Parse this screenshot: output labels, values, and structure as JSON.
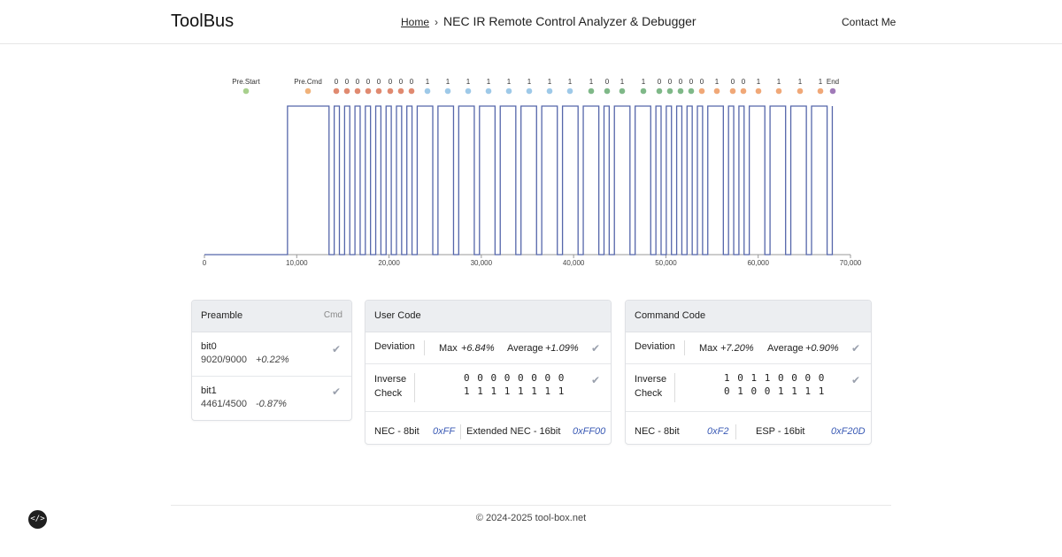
{
  "header": {
    "brand": "ToolBus",
    "breadcrumb_home": "Home",
    "breadcrumb_sep": "›",
    "breadcrumb_current": "NEC IR Remote Control Analyzer & Debugger",
    "contact": "Contact Me"
  },
  "chart_data": {
    "type": "line",
    "x_ticks": [
      "0",
      "10,000",
      "20,000",
      "30,000",
      "40,000",
      "50,000",
      "60,000",
      "70,000"
    ],
    "xlim": [
      0,
      70000
    ],
    "markers": [
      {
        "label": "Pre.Start",
        "color": "#a8d08d"
      },
      {
        "label": "Pre.Cmd",
        "color": "#f0b27a"
      },
      {
        "label": "0",
        "color": "#e08a70"
      },
      {
        "label": "0",
        "color": "#e08a70"
      },
      {
        "label": "0",
        "color": "#e08a70"
      },
      {
        "label": "0",
        "color": "#e08a70"
      },
      {
        "label": "0",
        "color": "#e08a70"
      },
      {
        "label": "0",
        "color": "#e08a70"
      },
      {
        "label": "0",
        "color": "#e08a70"
      },
      {
        "label": "0",
        "color": "#e08a70"
      },
      {
        "label": "1",
        "color": "#9ec9e8"
      },
      {
        "label": "1",
        "color": "#9ec9e8"
      },
      {
        "label": "1",
        "color": "#9ec9e8"
      },
      {
        "label": "1",
        "color": "#9ec9e8"
      },
      {
        "label": "1",
        "color": "#9ec9e8"
      },
      {
        "label": "1",
        "color": "#9ec9e8"
      },
      {
        "label": "1",
        "color": "#9ec9e8"
      },
      {
        "label": "1",
        "color": "#9ec9e8"
      },
      {
        "label": "1",
        "color": "#7fb888"
      },
      {
        "label": "0",
        "color": "#7fb888"
      },
      {
        "label": "1",
        "color": "#7fb888"
      },
      {
        "label": "1",
        "color": "#7fb888"
      },
      {
        "label": "0",
        "color": "#7fb888"
      },
      {
        "label": "0",
        "color": "#7fb888"
      },
      {
        "label": "0",
        "color": "#7fb888"
      },
      {
        "label": "0",
        "color": "#7fb888"
      },
      {
        "label": "0",
        "color": "#f0a878"
      },
      {
        "label": "1",
        "color": "#f0a878"
      },
      {
        "label": "0",
        "color": "#f0a878"
      },
      {
        "label": "0",
        "color": "#f0a878"
      },
      {
        "label": "1",
        "color": "#f0a878"
      },
      {
        "label": "1",
        "color": "#f0a878"
      },
      {
        "label": "1",
        "color": "#f0a878"
      },
      {
        "label": "1",
        "color": "#f0a878"
      },
      {
        "label": "End",
        "color": "#a07ab8"
      }
    ],
    "line_color": "#5566aa"
  },
  "preamble": {
    "title": "Preamble",
    "tag": "Cmd",
    "rows": [
      {
        "name": "bit0",
        "ratio": "9020/9000",
        "dev": "+0.22%"
      },
      {
        "name": "bit1",
        "ratio": "4461/4500",
        "dev": "-0.87%"
      }
    ]
  },
  "user": {
    "title": "User Code",
    "deviation_label": "Deviation",
    "max_label": "Max",
    "max_val": "+6.84%",
    "avg_label": "Average",
    "avg_val": "+1.09%",
    "inverse_label_1": "Inverse",
    "inverse_label_2": "Check",
    "bits_1": "0 0 0 0 0 0 0 0",
    "bits_2": "1 1 1 1 1 1 1 1",
    "nec_label": "NEC - 8bit",
    "nec_val": "0xFF",
    "ext_label": "Extended NEC - 16bit",
    "ext_val": "0xFF00"
  },
  "command": {
    "title": "Command Code",
    "deviation_label": "Deviation",
    "max_label": "Max",
    "max_val": "+7.20%",
    "avg_label": "Average",
    "avg_val": "+0.90%",
    "inverse_label_1": "Inverse",
    "inverse_label_2": "Check",
    "bits_1": "1 0 1 1 0 0 0 0",
    "bits_2": "0 1 0 0 1 1 1 1",
    "nec_label": "NEC - 8bit",
    "nec_val": "0xF2",
    "esp_label": "ESP - 16bit",
    "esp_val": "0xF20D"
  },
  "footer": {
    "text": "© 2024-2025 tool-box.net",
    "code_glyph": "</>"
  }
}
